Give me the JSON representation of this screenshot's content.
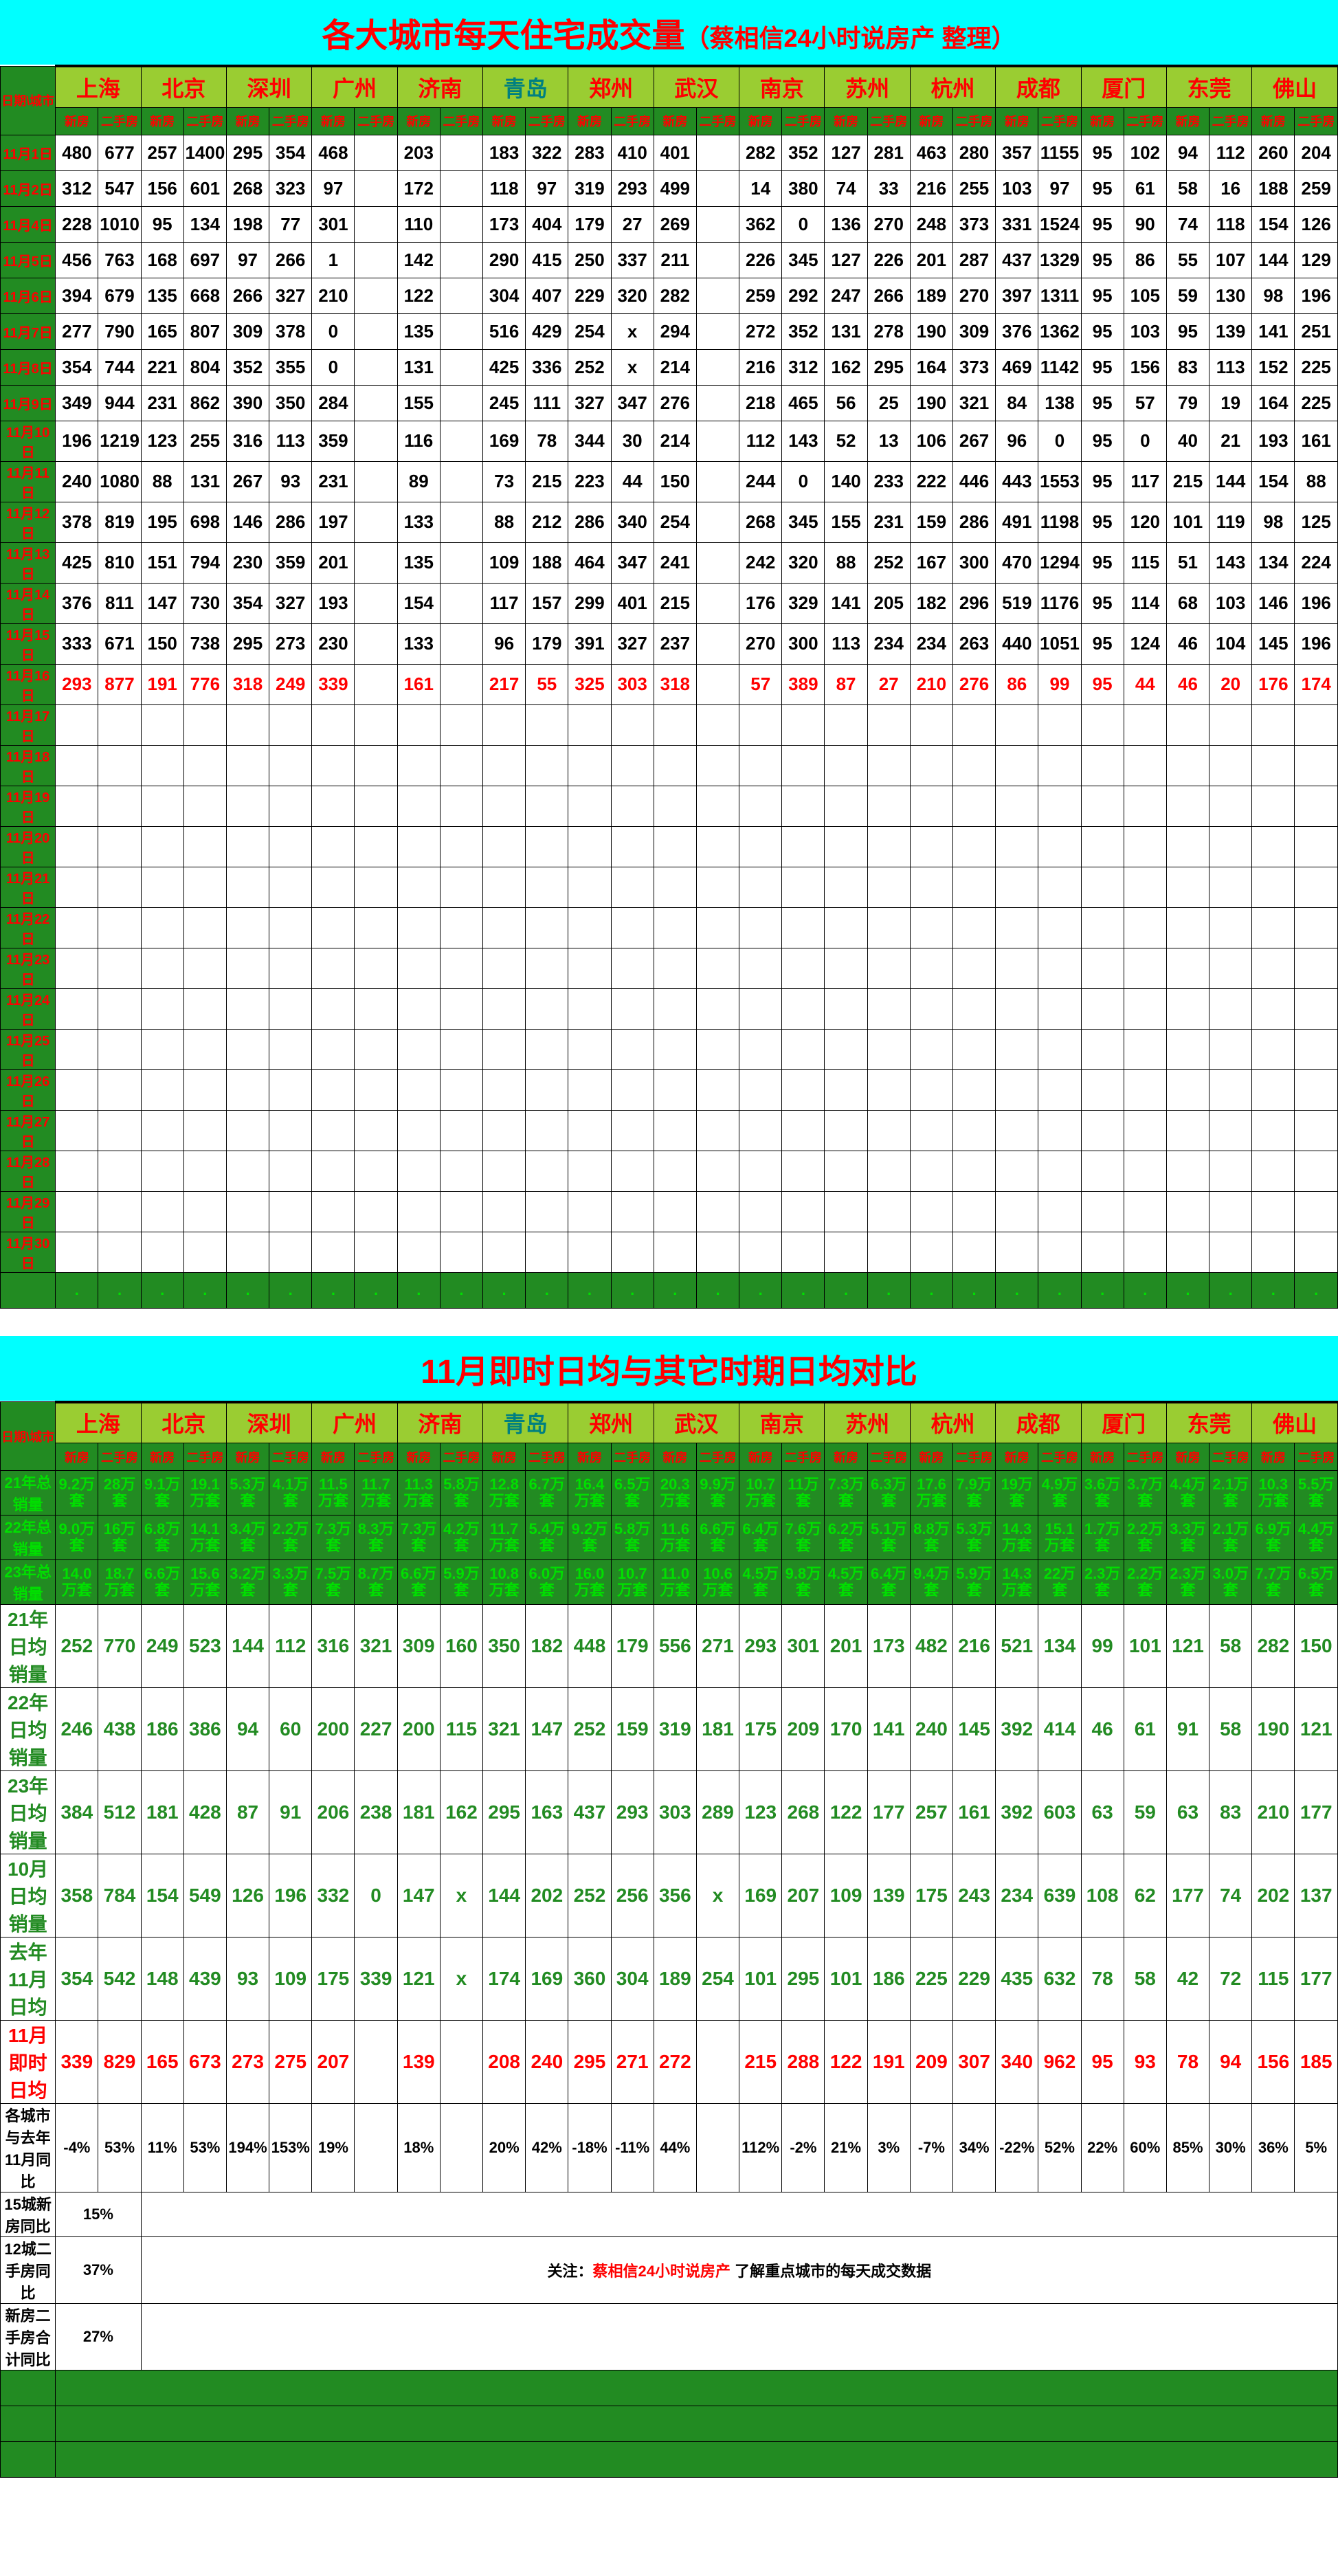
{
  "title_main": "各大城市每天住宅成交量",
  "title_sub": "（蔡相信24小时说房产 整理）",
  "title2": "11月即时日均与其它时期日均对比",
  "header_diag": "日期\\城市",
  "cities": [
    "上海",
    "北京",
    "深圳",
    "广州",
    "济南",
    "青岛",
    "郑州",
    "武汉",
    "南京",
    "苏州",
    "杭州",
    "成都",
    "厦门",
    "东莞",
    "佛山"
  ],
  "sub_headers": [
    "新房",
    "二手房"
  ],
  "dates": [
    "11月1日",
    "11月2日",
    "11月4日",
    "11月5日",
    "11月6日",
    "11月7日",
    "11月8日",
    "11月9日",
    "11月10日",
    "11月11日",
    "11月12日",
    "11月13日",
    "11月14日",
    "11月15日",
    "11月16日"
  ],
  "empty_dates": [
    "11月17日",
    "11月18日",
    "11月19日",
    "11月20日",
    "11月21日",
    "11月22日",
    "11月23日",
    "11月24日",
    "11月25日",
    "11月26日",
    "11月27日",
    "11月28日",
    "11月29日",
    "11月30日"
  ],
  "rows": [
    [
      "480",
      "677",
      "257",
      "1400",
      "295",
      "354",
      "468",
      "",
      "203",
      "",
      "183",
      "322",
      "283",
      "410",
      "401",
      "",
      "282",
      "352",
      "127",
      "281",
      "463",
      "280",
      "357",
      "1155",
      "95",
      "102",
      "94",
      "112",
      "260",
      "204"
    ],
    [
      "312",
      "547",
      "156",
      "601",
      "268",
      "323",
      "97",
      "",
      "172",
      "",
      "118",
      "97",
      "319",
      "293",
      "499",
      "",
      "14",
      "380",
      "74",
      "33",
      "216",
      "255",
      "103",
      "97",
      "95",
      "61",
      "58",
      "16",
      "188",
      "259"
    ],
    [
      "228",
      "1010",
      "95",
      "134",
      "198",
      "77",
      "301",
      "",
      "110",
      "",
      "173",
      "404",
      "179",
      "27",
      "269",
      "",
      "362",
      "0",
      "136",
      "270",
      "248",
      "373",
      "331",
      "1524",
      "95",
      "90",
      "74",
      "118",
      "154",
      "126"
    ],
    [
      "456",
      "763",
      "168",
      "697",
      "97",
      "266",
      "1",
      "",
      "142",
      "",
      "290",
      "415",
      "250",
      "337",
      "211",
      "",
      "226",
      "345",
      "127",
      "226",
      "201",
      "287",
      "437",
      "1329",
      "95",
      "86",
      "55",
      "107",
      "144",
      "129"
    ],
    [
      "394",
      "679",
      "135",
      "668",
      "266",
      "327",
      "210",
      "",
      "122",
      "",
      "304",
      "407",
      "229",
      "320",
      "282",
      "",
      "259",
      "292",
      "247",
      "266",
      "189",
      "270",
      "397",
      "1311",
      "95",
      "105",
      "59",
      "130",
      "98",
      "196"
    ],
    [
      "277",
      "790",
      "165",
      "807",
      "309",
      "378",
      "0",
      "",
      "135",
      "",
      "516",
      "429",
      "254",
      "x",
      "294",
      "",
      "272",
      "352",
      "131",
      "278",
      "190",
      "309",
      "376",
      "1362",
      "95",
      "103",
      "95",
      "139",
      "141",
      "251"
    ],
    [
      "354",
      "744",
      "221",
      "804",
      "352",
      "355",
      "0",
      "",
      "131",
      "",
      "425",
      "336",
      "252",
      "x",
      "214",
      "",
      "216",
      "312",
      "162",
      "295",
      "164",
      "373",
      "469",
      "1142",
      "95",
      "156",
      "83",
      "113",
      "152",
      "225"
    ],
    [
      "349",
      "944",
      "231",
      "862",
      "390",
      "350",
      "284",
      "",
      "155",
      "",
      "245",
      "111",
      "327",
      "347",
      "276",
      "",
      "218",
      "465",
      "56",
      "25",
      "190",
      "321",
      "84",
      "138",
      "95",
      "57",
      "79",
      "19",
      "164",
      "225"
    ],
    [
      "196",
      "1219",
      "123",
      "255",
      "316",
      "113",
      "359",
      "",
      "116",
      "",
      "169",
      "78",
      "344",
      "30",
      "214",
      "",
      "112",
      "143",
      "52",
      "13",
      "106",
      "267",
      "96",
      "0",
      "95",
      "0",
      "40",
      "21",
      "193",
      "161"
    ],
    [
      "240",
      "1080",
      "88",
      "131",
      "267",
      "93",
      "231",
      "",
      "89",
      "",
      "73",
      "215",
      "223",
      "44",
      "150",
      "",
      "244",
      "0",
      "140",
      "233",
      "222",
      "446",
      "443",
      "1553",
      "95",
      "117",
      "215",
      "144",
      "154",
      "88"
    ],
    [
      "378",
      "819",
      "195",
      "698",
      "146",
      "286",
      "197",
      "",
      "133",
      "",
      "88",
      "212",
      "286",
      "340",
      "254",
      "",
      "268",
      "345",
      "155",
      "231",
      "159",
      "286",
      "491",
      "1198",
      "95",
      "120",
      "101",
      "119",
      "98",
      "125"
    ],
    [
      "425",
      "810",
      "151",
      "794",
      "230",
      "359",
      "201",
      "",
      "135",
      "",
      "109",
      "188",
      "464",
      "347",
      "241",
      "",
      "242",
      "320",
      "88",
      "252",
      "167",
      "300",
      "470",
      "1294",
      "95",
      "115",
      "51",
      "143",
      "134",
      "224"
    ],
    [
      "376",
      "811",
      "147",
      "730",
      "354",
      "327",
      "193",
      "",
      "154",
      "",
      "117",
      "157",
      "299",
      "401",
      "215",
      "",
      "176",
      "329",
      "141",
      "205",
      "182",
      "296",
      "519",
      "1176",
      "95",
      "114",
      "68",
      "103",
      "146",
      "196"
    ],
    [
      "333",
      "671",
      "150",
      "738",
      "295",
      "273",
      "230",
      "",
      "133",
      "",
      "96",
      "179",
      "391",
      "327",
      "237",
      "",
      "270",
      "300",
      "113",
      "234",
      "234",
      "263",
      "440",
      "1051",
      "95",
      "124",
      "46",
      "104",
      "145",
      "196"
    ],
    [
      "293",
      "877",
      "191",
      "776",
      "318",
      "249",
      "339",
      "",
      "161",
      "",
      "217",
      "55",
      "325",
      "303",
      "318",
      "",
      "57",
      "389",
      "87",
      "27",
      "210",
      "276",
      "86",
      "99",
      "95",
      "44",
      "46",
      "20",
      "176",
      "174"
    ]
  ],
  "last_row_red": true,
  "summary_labels": {
    "y21_total": "21年总销量",
    "y22_total": "22年总销量",
    "y23_total": "23年总销量",
    "y21_avg": "21年日均销量",
    "y22_avg": "22年日均销量",
    "y23_avg": "23年日均销量",
    "oct_avg": "10月日均销量",
    "last_nov_avg": "去年11月日均",
    "nov_now_avg": "11月即时日均",
    "vs_last_nov": "各城市与去年11月同比",
    "city15_new": "15城新房同比",
    "city12_sec": "12城二手房同比",
    "new_sec_total": "新房二手房合计同比"
  },
  "y21_total": [
    "9.2万套",
    "28万套",
    "9.1万套",
    "19.1万套",
    "5.3万套",
    "4.1万套",
    "11.5万套",
    "11.7万套",
    "11.3万套",
    "5.8万套",
    "12.8万套",
    "6.7万套",
    "16.4万套",
    "6.5万套",
    "20.3万套",
    "9.9万套",
    "10.7万套",
    "11万套",
    "7.3万套",
    "6.3万套",
    "17.6万套",
    "7.9万套",
    "19万套",
    "4.9万套",
    "3.6万套",
    "3.7万套",
    "4.4万套",
    "2.1万套",
    "10.3万套",
    "5.5万套"
  ],
  "y22_total": [
    "9.0万套",
    "16万套",
    "6.8万套",
    "14.1万套",
    "3.4万套",
    "2.2万套",
    "7.3万套",
    "8.3万套",
    "7.3万套",
    "4.2万套",
    "11.7万套",
    "5.4万套",
    "9.2万套",
    "5.8万套",
    "11.6万套",
    "6.6万套",
    "6.4万套",
    "7.6万套",
    "6.2万套",
    "5.1万套",
    "8.8万套",
    "5.3万套",
    "14.3万套",
    "15.1万套",
    "1.7万套",
    "2.2万套",
    "3.3万套",
    "2.1万套",
    "6.9万套",
    "4.4万套"
  ],
  "y23_total": [
    "14.0万套",
    "18.7万套",
    "6.6万套",
    "15.6万套",
    "3.2万套",
    "3.3万套",
    "7.5万套",
    "8.7万套",
    "6.6万套",
    "5.9万套",
    "10.8万套",
    "6.0万套",
    "16.0万套",
    "10.7万套",
    "11.0万套",
    "10.6万套",
    "4.5万套",
    "9.8万套",
    "4.5万套",
    "6.4万套",
    "9.4万套",
    "5.9万套",
    "14.3万套",
    "22万套",
    "2.3万套",
    "2.2万套",
    "2.3万套",
    "3.0万套",
    "7.7万套",
    "6.5万套"
  ],
  "y21_avg": [
    "252",
    "770",
    "249",
    "523",
    "144",
    "112",
    "316",
    "321",
    "309",
    "160",
    "350",
    "182",
    "448",
    "179",
    "556",
    "271",
    "293",
    "301",
    "201",
    "173",
    "482",
    "216",
    "521",
    "134",
    "99",
    "101",
    "121",
    "58",
    "282",
    "150"
  ],
  "y22_avg": [
    "246",
    "438",
    "186",
    "386",
    "94",
    "60",
    "200",
    "227",
    "200",
    "115",
    "321",
    "147",
    "252",
    "159",
    "319",
    "181",
    "175",
    "209",
    "170",
    "141",
    "240",
    "145",
    "392",
    "414",
    "46",
    "61",
    "91",
    "58",
    "190",
    "121"
  ],
  "y23_avg": [
    "384",
    "512",
    "181",
    "428",
    "87",
    "91",
    "206",
    "238",
    "181",
    "162",
    "295",
    "163",
    "437",
    "293",
    "303",
    "289",
    "123",
    "268",
    "122",
    "177",
    "257",
    "161",
    "392",
    "603",
    "63",
    "59",
    "63",
    "83",
    "210",
    "177"
  ],
  "oct_avg": [
    "358",
    "784",
    "154",
    "549",
    "126",
    "196",
    "332",
    "0",
    "147",
    "x",
    "144",
    "202",
    "252",
    "256",
    "356",
    "x",
    "169",
    "207",
    "109",
    "139",
    "175",
    "243",
    "234",
    "639",
    "108",
    "62",
    "177",
    "74",
    "202",
    "137"
  ],
  "last_nov_avg": [
    "354",
    "542",
    "148",
    "439",
    "93",
    "109",
    "175",
    "339",
    "121",
    "x",
    "174",
    "169",
    "360",
    "304",
    "189",
    "254",
    "101",
    "295",
    "101",
    "186",
    "225",
    "229",
    "435",
    "632",
    "78",
    "58",
    "42",
    "72",
    "115",
    "177"
  ],
  "nov_now_avg": [
    "339",
    "829",
    "165",
    "673",
    "273",
    "275",
    "207",
    "",
    "139",
    "",
    "208",
    "240",
    "295",
    "271",
    "272",
    "",
    "215",
    "288",
    "122",
    "191",
    "209",
    "307",
    "340",
    "962",
    "95",
    "93",
    "78",
    "94",
    "156",
    "185"
  ],
  "vs_last_nov": [
    "-4%",
    "53%",
    "11%",
    "53%",
    "194%",
    "153%",
    "19%",
    "",
    "18%",
    "",
    "20%",
    "42%",
    "-18%",
    "-11%",
    "44%",
    "",
    "112%",
    "-2%",
    "21%",
    "3%",
    "-7%",
    "34%",
    "-22%",
    "52%",
    "22%",
    "60%",
    "85%",
    "30%",
    "36%",
    "5%"
  ],
  "city15_new_pct": "15%",
  "city12_sec_pct": "37%",
  "new_sec_total_pct": "27%",
  "note_prefix": "关注：",
  "note_red": "蔡相信24小时说房产",
  "note_suffix": " 了解重点城市的每天成交数据"
}
